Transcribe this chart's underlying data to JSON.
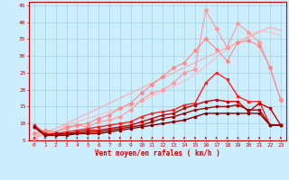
{
  "xlabel": "Vent moyen/en rafales ( km/h )",
  "background_color": "#cceeff",
  "grid_color": "#99cccc",
  "xlim": [
    -0.5,
    23.5
  ],
  "ylim": [
    5,
    46
  ],
  "lines": [
    {
      "color": "#ffaaaa",
      "lw": 0.8,
      "marker": null,
      "y": [
        5.5,
        7.0,
        8.5,
        10.0,
        11.5,
        13.0,
        14.5,
        16.0,
        17.5,
        19.0,
        20.5,
        22.0,
        23.5,
        25.0,
        26.5,
        28.0,
        29.5,
        31.0,
        32.5,
        34.0,
        35.5,
        37.0,
        38.5,
        37.5
      ]
    },
    {
      "color": "#ff9999",
      "lw": 0.8,
      "marker": "D",
      "markersize": 2.0,
      "y": [
        5.5,
        8.0,
        7.5,
        8.5,
        9.5,
        9.0,
        10.5,
        11.0,
        12.0,
        14.0,
        17.0,
        19.0,
        20.0,
        22.0,
        25.0,
        26.0,
        43.5,
        38.0,
        32.5,
        39.5,
        37.0,
        34.0,
        26.5,
        17.0
      ]
    },
    {
      "color": "#ffbbbb",
      "lw": 0.8,
      "marker": null,
      "y": [
        6.5,
        7.5,
        8.5,
        9.5,
        10.5,
        11.5,
        12.5,
        13.5,
        14.5,
        15.5,
        16.5,
        18.0,
        19.5,
        21.0,
        22.5,
        24.5,
        27.0,
        29.5,
        32.0,
        34.0,
        36.0,
        37.5,
        37.0,
        36.0
      ]
    },
    {
      "color": "#ff8888",
      "lw": 0.8,
      "marker": "D",
      "markersize": 2.0,
      "y": [
        7.0,
        8.0,
        7.5,
        9.0,
        9.5,
        10.0,
        11.5,
        12.5,
        14.5,
        16.0,
        19.0,
        21.5,
        24.0,
        26.5,
        28.0,
        31.5,
        35.0,
        32.0,
        28.5,
        34.0,
        34.5,
        33.0,
        26.5,
        17.0
      ]
    },
    {
      "color": "#ff2222",
      "lw": 1.0,
      "marker": "s",
      "markersize": 2.0,
      "y": [
        9.5,
        7.0,
        7.0,
        7.5,
        8.0,
        8.5,
        9.0,
        9.5,
        10.0,
        10.5,
        12.0,
        13.0,
        13.5,
        14.0,
        15.5,
        16.0,
        22.0,
        25.0,
        23.0,
        18.0,
        16.5,
        16.5,
        9.5,
        9.5
      ]
    },
    {
      "color": "#cc0000",
      "lw": 1.0,
      "marker": "s",
      "markersize": 2.0,
      "y": [
        9.0,
        6.5,
        7.0,
        7.0,
        7.5,
        8.0,
        8.0,
        8.5,
        9.0,
        9.5,
        10.5,
        11.5,
        12.5,
        13.0,
        14.5,
        15.5,
        16.5,
        17.0,
        16.5,
        16.5,
        13.5,
        16.0,
        14.5,
        9.5
      ]
    },
    {
      "color": "#aa0000",
      "lw": 1.0,
      "marker": "s",
      "markersize": 2.0,
      "y": [
        9.0,
        6.5,
        6.5,
        7.0,
        7.0,
        7.5,
        7.5,
        8.0,
        8.5,
        9.0,
        9.5,
        10.5,
        11.5,
        12.0,
        13.0,
        14.0,
        14.5,
        15.0,
        15.0,
        15.5,
        14.0,
        14.0,
        9.5,
        9.5
      ]
    },
    {
      "color": "#880000",
      "lw": 1.0,
      "marker": "s",
      "markersize": 2.0,
      "y": [
        9.0,
        6.5,
        6.5,
        6.5,
        7.0,
        7.0,
        7.0,
        7.5,
        8.0,
        8.5,
        9.0,
        9.5,
        10.0,
        10.5,
        11.0,
        12.0,
        13.0,
        13.0,
        13.0,
        13.0,
        13.0,
        13.0,
        9.5,
        9.5
      ]
    }
  ],
  "x_ticks": [
    0,
    1,
    2,
    3,
    4,
    5,
    6,
    7,
    8,
    9,
    10,
    11,
    12,
    13,
    14,
    15,
    16,
    17,
    18,
    19,
    20,
    21,
    22,
    23
  ],
  "yticks": [
    5,
    10,
    15,
    20,
    25,
    30,
    35,
    40,
    45
  ],
  "tick_fontsize": 4.5,
  "label_fontsize": 5.5
}
